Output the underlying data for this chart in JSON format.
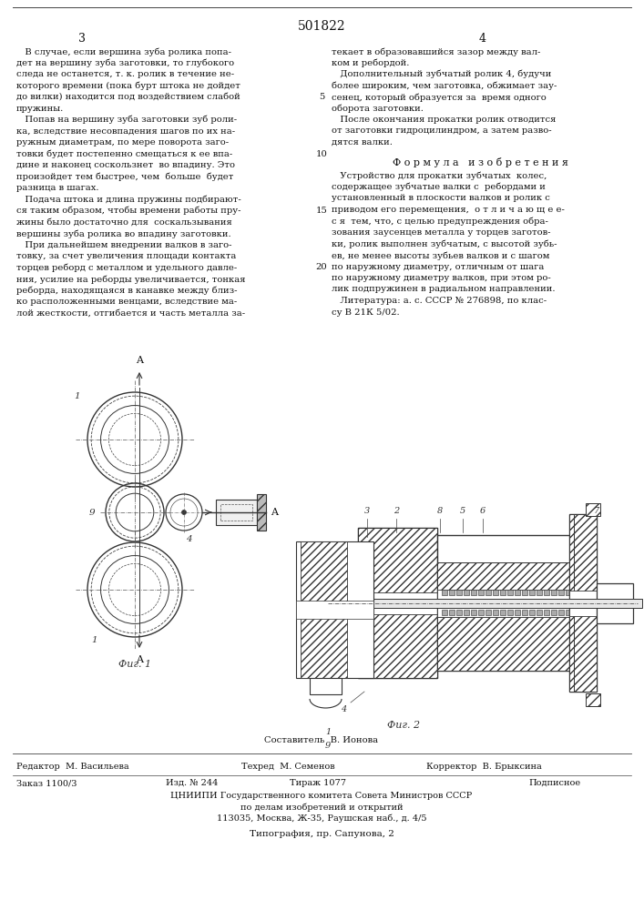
{
  "patent_number": "501822",
  "page_left": "3",
  "page_right": "4",
  "background_color": "#ffffff",
  "text_color": "#1a1a1a",
  "col_left_text": [
    "   В случае, если вершина зуба ролика попа-",
    "дет на вершину зуба заготовки, то глубокого",
    "следа не останется, т. к. ролик в течение не-",
    "которого времени (пока бурт штока не дойдет",
    "до вилки) находится под воздействием слабой",
    "пружины.",
    "   Попав на вершину зуба заготовки зуб роли-",
    "ка, вследствие несовпадения шагов по их на-",
    "ружным диаметрам, по мере поворота заго-",
    "товки будет постепенно смещаться к ее впа-",
    "дине и наконец соскользнет  во впадину. Это",
    "произойдет тем быстрее, чем  больше  будет",
    "разница в шагах.",
    "   Подача штока и длина пружины подбирают-",
    "ся таким образом, чтобы времени работы пру-",
    "жины было достаточно для  соскальзывания",
    "вершины зуба ролика во впадину заготовки.",
    "   При дальнейшем внедрении валков в заго-",
    "товку, за счет увеличения площади контакта",
    "торцев реборд с металлом и удельного давле-",
    "ния, усилие на реборды увеличивается, тонкая",
    "реборда, находящаяся в канавке между близ-",
    "ко расположенными венцами, вследствие ма-",
    "лой жесткости, отгибается и часть металла за-"
  ],
  "col_right_text": [
    "текает в образовавшийся зазор между вал-",
    "ком и ребордой.",
    "   Дополнительный зубчатый ролик 4, будучи",
    "более широким, чем заготовка, обжимает зау-",
    "сенец, который образуется за  время одного",
    "оборота заготовки.",
    "   После окончания прокатки ролик отводится",
    "от заготовки гидроцилиндром, а затем разво-",
    "дятся валки."
  ],
  "formula_title": "Ф о р м у л а   и з о б р е т е н и я",
  "formula_text": [
    "   Устройство для прокатки зубчатых  колес,",
    "содержащее зубчатые валки с  ребордами и",
    "установленный в плоскости валков и ролик с",
    "приводом его перемещения,  о т л и ч а ю щ е е-",
    "с я  тем, что, с целью предупреждения обра-",
    "зования заусенцев металла у торцев заготов-",
    "ки, ролик выполнен зубчатым, с высотой зубь-",
    "ев, не менее высоты зубьев валков и с шагом",
    "по наружному диаметру, отличным от шага",
    "по наружному диаметру валков, при этом ро-",
    "лик подпружинен в радиальном направлении.",
    "   Литература: а. с. СССР № 276898, по клас-",
    "су В 21К 5/02."
  ],
  "footer_sestavitel": "Составитель  В. Ионова",
  "footer_redaktor": "Редактор  М. Васильева",
  "footer_texred": "Техред  М. Семенов",
  "footer_korrektor": "Корректор  В. Брыксина",
  "footer_zakaz": "Заказ 1100/3",
  "footer_izd": "Изд. № 244",
  "footer_tirazh": "Тираж 1077",
  "footer_podpisnoe": "Подписное",
  "footer_tsniipи": "ЦНИИПИ Государственного комитета Совета Министров СССР",
  "footer_dela": "по делам изобретений и открытий",
  "footer_address": "113035, Москва, Ж-35, Раушская наб., д. 4/5",
  "footer_tipografiya": "Типография, пр. Сапунова, 2",
  "fig1_caption": "Фиг. 1",
  "fig2_caption": "Фиг. 2"
}
